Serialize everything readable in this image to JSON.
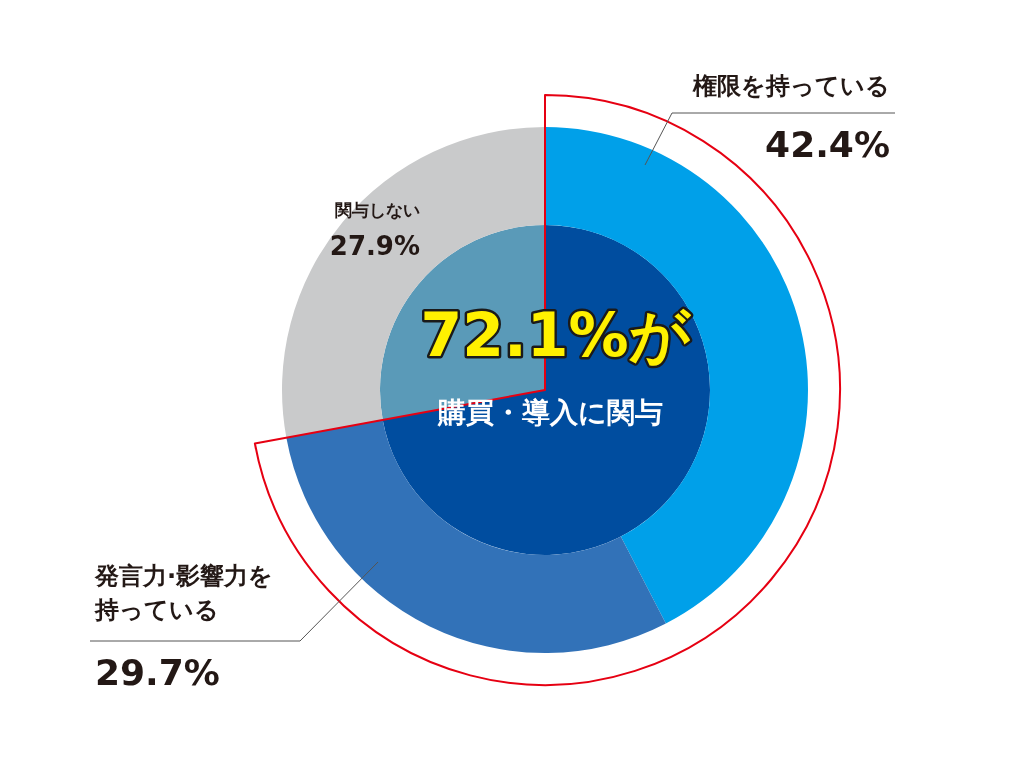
{
  "chart_data": {
    "type": "donut",
    "categories": [
      "権限を持っている",
      "発言力·影響力を持っている",
      "関与しない"
    ],
    "series": [
      {
        "values": [
          42.4,
          29.7,
          27.9
        ],
        "colors": [
          "#00a0e9",
          "#3272b8",
          "#c9cacb"
        ],
        "value_labels": [
          "42.4%",
          "29.7%",
          "27.9%"
        ]
      },
      {
        "values": [
          72.1,
          null,
          27.9
        ],
        "colors": [
          "#004d9f",
          "#3272b8",
          "#5a9ab8"
        ]
      }
    ],
    "annotations": [
      "72.1%が",
      "購買・導入に関与"
    ]
  }
}
